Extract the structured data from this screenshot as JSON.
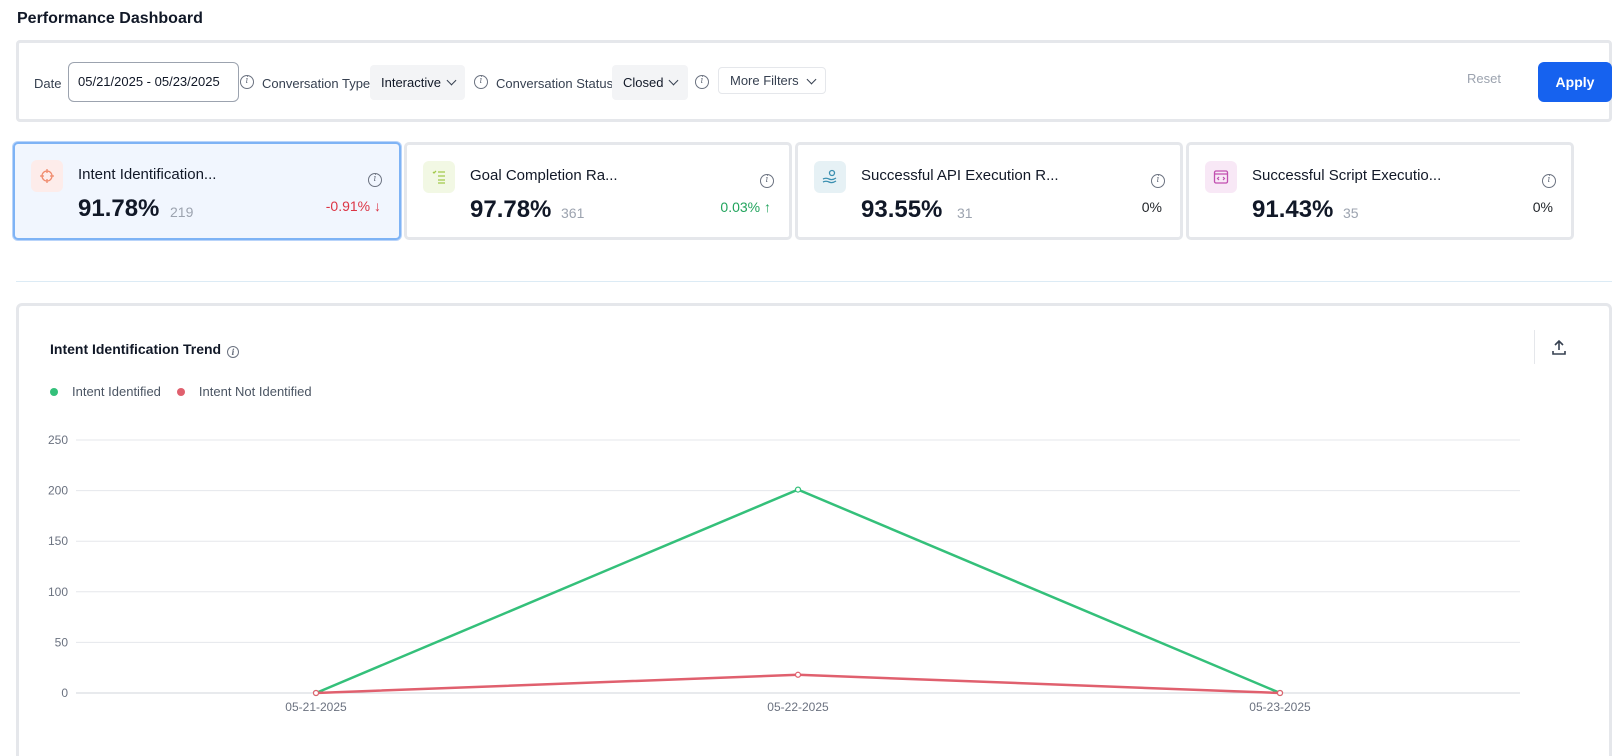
{
  "page": {
    "title": "Performance Dashboard"
  },
  "filters": {
    "date_label": "Date",
    "date_value": "05/21/2025 - 05/23/2025",
    "conversation_type_label": "Conversation Type",
    "conversation_type_value": "Interactive",
    "conversation_status_label": "Conversation Status",
    "conversation_status_value": "Closed",
    "more_filters_label": "More Filters",
    "reset_label": "Reset",
    "apply_label": "Apply",
    "info_glyph": "i"
  },
  "kpis": [
    {
      "name": "Intent Identification...",
      "value": "91.78%",
      "count": "219",
      "change": "-0.91% ↓",
      "change_color": "#dc3545",
      "icon": "crosshair-icon",
      "icon_bg": "#fdecea",
      "icon_color": "#f08a6c"
    },
    {
      "name": "Goal Completion Ra...",
      "value": "97.78%",
      "count": "361",
      "change": "0.03% ↑",
      "change_color": "#22a45d",
      "icon": "checklist-icon",
      "icon_bg": "#f2f8e4",
      "icon_color": "#a3c94a"
    },
    {
      "name": "Successful API Execution R...",
      "value": "93.55%",
      "count": "31",
      "change": "0%",
      "change_color": "#111827",
      "icon": "api-hand-icon",
      "icon_bg": "#e6f1f5",
      "icon_color": "#3a8fb0"
    },
    {
      "name": "Successful Script Executio...",
      "value": "91.43%",
      "count": "35",
      "change": "0%",
      "change_color": "#111827",
      "icon": "script-window-icon",
      "icon_bg": "#f8e8f6",
      "icon_color": "#c14fb0"
    }
  ],
  "trend": {
    "title": "Intent Identification Trend",
    "legend": [
      {
        "label": "Intent Identified",
        "color": "#34c07a"
      },
      {
        "label": "Intent Not Identified",
        "color": "#e0606e"
      }
    ]
  },
  "chart_data": {
    "type": "line",
    "categories": [
      "05-21-2025",
      "05-22-2025",
      "05-23-2025"
    ],
    "series": [
      {
        "name": "Intent Identified",
        "values": [
          0,
          201,
          0
        ],
        "color": "#34c07a"
      },
      {
        "name": "Intent Not Identified",
        "values": [
          0,
          18,
          0
        ],
        "color": "#e0606e"
      }
    ],
    "y_ticks": [
      0,
      50,
      100,
      150,
      200,
      250
    ],
    "ylim": [
      0,
      250
    ],
    "grid": true,
    "legend_position": "top-left"
  }
}
